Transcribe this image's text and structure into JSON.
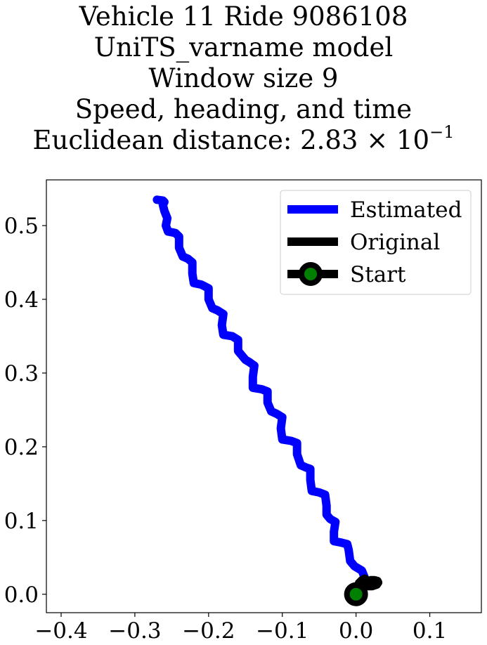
{
  "chart_data": {
    "type": "line",
    "title_lines": [
      "Vehicle 11 Ride 9086108",
      "UniTS_varname model",
      "Window size 9",
      "Speed, heading, and time"
    ],
    "title_distance_label": "Euclidean distance: 2.83",
    "title_distance_times": "×",
    "title_distance_base": "10",
    "title_distance_exp": "−1",
    "xlim": [
      -0.42,
      0.17
    ],
    "ylim": [
      -0.025,
      0.562
    ],
    "xticks": [
      -0.4,
      -0.3,
      -0.2,
      -0.1,
      0.0,
      0.1
    ],
    "xtick_labels": [
      "−0.4",
      "−0.3",
      "−0.2",
      "−0.1",
      "0.0",
      "0.1"
    ],
    "yticks": [
      0.0,
      0.1,
      0.2,
      0.3,
      0.4,
      0.5
    ],
    "ytick_labels": [
      "0.0",
      "0.1",
      "0.2",
      "0.3",
      "0.4",
      "0.5"
    ],
    "grid": false,
    "legend_position": "top-right",
    "series": [
      {
        "name": "Estimated",
        "color": "#0000ff",
        "x": [
          0.0,
          0.005,
          0.012,
          0.008,
          -0.002,
          -0.008,
          -0.01,
          -0.012,
          -0.02,
          -0.03,
          -0.03,
          -0.028,
          -0.035,
          -0.04,
          -0.04,
          -0.042,
          -0.05,
          -0.06,
          -0.062,
          -0.062,
          -0.068,
          -0.075,
          -0.08,
          -0.08,
          -0.088,
          -0.1,
          -0.102,
          -0.1,
          -0.108,
          -0.115,
          -0.12,
          -0.12,
          -0.128,
          -0.14,
          -0.14,
          -0.138,
          -0.145,
          -0.15,
          -0.16,
          -0.16,
          -0.168,
          -0.18,
          -0.182,
          -0.18,
          -0.188,
          -0.195,
          -0.2,
          -0.2,
          -0.21,
          -0.22,
          -0.222,
          -0.222,
          -0.228,
          -0.235,
          -0.24,
          -0.24,
          -0.245,
          -0.255,
          -0.258,
          -0.256,
          -0.26,
          -0.262,
          -0.26,
          -0.262,
          -0.27
        ],
        "y": [
          0.0,
          0.012,
          0.022,
          0.032,
          0.038,
          0.045,
          0.06,
          0.068,
          0.07,
          0.072,
          0.085,
          0.098,
          0.102,
          0.108,
          0.12,
          0.135,
          0.138,
          0.14,
          0.155,
          0.17,
          0.172,
          0.175,
          0.19,
          0.205,
          0.208,
          0.21,
          0.225,
          0.24,
          0.245,
          0.248,
          0.26,
          0.275,
          0.278,
          0.28,
          0.295,
          0.31,
          0.315,
          0.318,
          0.33,
          0.345,
          0.35,
          0.352,
          0.365,
          0.38,
          0.385,
          0.388,
          0.4,
          0.415,
          0.42,
          0.422,
          0.435,
          0.45,
          0.455,
          0.458,
          0.47,
          0.485,
          0.49,
          0.492,
          0.5,
          0.51,
          0.52,
          0.528,
          0.532,
          0.534,
          0.535
        ]
      },
      {
        "name": "Original",
        "color": "#000000",
        "x": [
          0.0,
          0.004,
          0.009,
          0.014,
          0.02,
          0.025,
          0.029,
          0.03,
          0.028,
          0.022,
          0.015,
          0.008,
          0.004,
          0.008,
          0.012,
          0.01,
          0.004,
          0.0
        ],
        "y": [
          0.0,
          0.006,
          0.012,
          0.016,
          0.019,
          0.019,
          0.018,
          0.016,
          0.013,
          0.011,
          0.011,
          0.012,
          0.015,
          0.019,
          0.021,
          0.016,
          0.008,
          0.0
        ]
      },
      {
        "name": "Start",
        "marker_face_color": "#008000",
        "marker_edge_color": "#000000",
        "x": [
          0.0
        ],
        "y": [
          0.0
        ]
      }
    ]
  }
}
